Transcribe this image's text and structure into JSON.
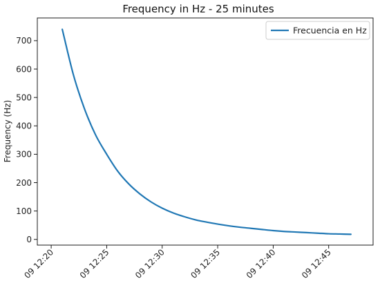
{
  "chart_data": {
    "type": "line",
    "title": "Frequency in Hz - 25 minutes",
    "xlabel": "",
    "ylabel": "Frequency (Hz)",
    "x_tick_labels": [
      "09 12:20",
      "09 12:25",
      "09 12:30",
      "09 12:35",
      "09 12:40",
      "09 12:45"
    ],
    "y_ticks": [
      0,
      100,
      200,
      300,
      400,
      500,
      600,
      700
    ],
    "xlim": [
      "2000-01-09T12:18:45",
      "2000-01-09T12:49:00"
    ],
    "ylim": [
      -20,
      780
    ],
    "grid": false,
    "legend_position": "top-right",
    "series": [
      {
        "name": "Frecuencia en Hz",
        "color": "#1f77b4",
        "x": [
          "2000-01-09T12:21:00",
          "2000-01-09T12:22:00",
          "2000-01-09T12:23:00",
          "2000-01-09T12:24:00",
          "2000-01-09T12:25:00",
          "2000-01-09T12:26:00",
          "2000-01-09T12:27:00",
          "2000-01-09T12:28:00",
          "2000-01-09T12:29:00",
          "2000-01-09T12:30:00",
          "2000-01-09T12:31:00",
          "2000-01-09T12:32:00",
          "2000-01-09T12:33:00",
          "2000-01-09T12:34:00",
          "2000-01-09T12:35:00",
          "2000-01-09T12:36:00",
          "2000-01-09T12:37:00",
          "2000-01-09T12:38:00",
          "2000-01-09T12:39:00",
          "2000-01-09T12:40:00",
          "2000-01-09T12:41:00",
          "2000-01-09T12:42:00",
          "2000-01-09T12:43:00",
          "2000-01-09T12:44:00",
          "2000-01-09T12:45:00",
          "2000-01-09T12:46:00",
          "2000-01-09T12:47:00"
        ],
        "y": [
          740,
          580,
          460,
          368,
          300,
          240,
          195,
          160,
          132,
          110,
          93,
          80,
          69,
          61,
          54,
          48,
          43,
          39,
          35,
          31,
          28,
          26,
          24,
          22,
          20,
          19,
          18
        ]
      }
    ]
  }
}
